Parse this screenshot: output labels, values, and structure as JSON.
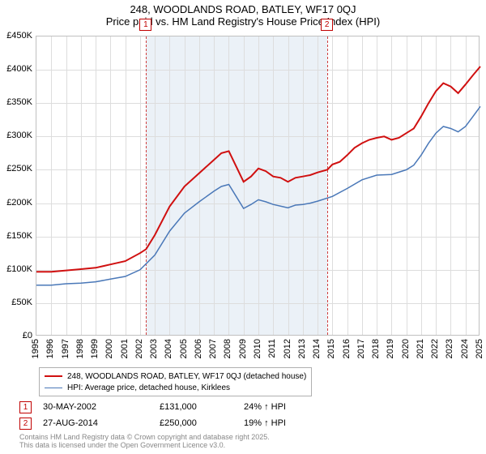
{
  "title": {
    "line1": "248, WOODLANDS ROAD, BATLEY, WF17 0QJ",
    "line2": "Price paid vs. HM Land Registry's House Price Index (HPI)",
    "fontsize": 13
  },
  "chart": {
    "type": "line",
    "background_color": "#ffffff",
    "grid_color": "#dddddd",
    "border_color": "#c0c0c0",
    "x": {
      "min": 1995,
      "max": 2025,
      "ticks": [
        1995,
        1996,
        1997,
        1998,
        1999,
        2000,
        2001,
        2002,
        2003,
        2004,
        2005,
        2006,
        2007,
        2008,
        2009,
        2010,
        2011,
        2012,
        2013,
        2014,
        2015,
        2016,
        2017,
        2018,
        2019,
        2020,
        2021,
        2022,
        2023,
        2024,
        2025
      ],
      "label_fontsize": 11
    },
    "y": {
      "min": 0,
      "max": 450000,
      "tick_step": 50000,
      "tick_labels": [
        "£0",
        "£50K",
        "£100K",
        "£150K",
        "£200K",
        "£250K",
        "£300K",
        "£350K",
        "£400K",
        "£450K"
      ],
      "label_fontsize": 11
    },
    "sale_band": {
      "start_year": 2002.41,
      "end_year": 2014.66,
      "color": "#e8eef6"
    },
    "sale_lines": {
      "color": "#d04040",
      "dash": "4,3"
    },
    "sale_markers": [
      {
        "n": "1",
        "year": 2002.41,
        "chart_y": -22
      },
      {
        "n": "2",
        "year": 2014.66,
        "chart_y": -22
      }
    ],
    "series": [
      {
        "name": "price_paid",
        "label": "248, WOODLANDS ROAD, BATLEY, WF17 0QJ (detached house)",
        "color": "#d01010",
        "line_width": 2,
        "points": [
          [
            1995,
            97000
          ],
          [
            1996,
            97000
          ],
          [
            1997,
            99000
          ],
          [
            1998,
            101000
          ],
          [
            1999,
            103000
          ],
          [
            2000,
            108000
          ],
          [
            2001,
            113000
          ],
          [
            2002,
            125000
          ],
          [
            2002.41,
            131000
          ],
          [
            2003,
            152000
          ],
          [
            2004,
            195000
          ],
          [
            2005,
            225000
          ],
          [
            2006,
            245000
          ],
          [
            2007,
            265000
          ],
          [
            2007.5,
            275000
          ],
          [
            2008,
            278000
          ],
          [
            2008.5,
            255000
          ],
          [
            2009,
            232000
          ],
          [
            2009.5,
            240000
          ],
          [
            2010,
            252000
          ],
          [
            2010.5,
            248000
          ],
          [
            2011,
            240000
          ],
          [
            2011.5,
            238000
          ],
          [
            2012,
            232000
          ],
          [
            2012.5,
            238000
          ],
          [
            2013,
            240000
          ],
          [
            2013.5,
            242000
          ],
          [
            2014,
            246000
          ],
          [
            2014.66,
            250000
          ],
          [
            2015,
            258000
          ],
          [
            2015.5,
            262000
          ],
          [
            2016,
            272000
          ],
          [
            2016.5,
            283000
          ],
          [
            2017,
            290000
          ],
          [
            2017.5,
            295000
          ],
          [
            2018,
            298000
          ],
          [
            2018.5,
            300000
          ],
          [
            2019,
            295000
          ],
          [
            2019.5,
            298000
          ],
          [
            2020,
            305000
          ],
          [
            2020.5,
            312000
          ],
          [
            2021,
            330000
          ],
          [
            2021.5,
            350000
          ],
          [
            2022,
            368000
          ],
          [
            2022.5,
            380000
          ],
          [
            2023,
            375000
          ],
          [
            2023.5,
            365000
          ],
          [
            2024,
            378000
          ],
          [
            2024.5,
            392000
          ],
          [
            2025,
            405000
          ]
        ]
      },
      {
        "name": "hpi",
        "label": "HPI: Average price, detached house, Kirklees",
        "color": "#4a78b8",
        "line_width": 1.5,
        "points": [
          [
            1995,
            77000
          ],
          [
            1996,
            77000
          ],
          [
            1997,
            79000
          ],
          [
            1998,
            80000
          ],
          [
            1999,
            82000
          ],
          [
            2000,
            86000
          ],
          [
            2001,
            90000
          ],
          [
            2002,
            100000
          ],
          [
            2003,
            122000
          ],
          [
            2004,
            158000
          ],
          [
            2005,
            185000
          ],
          [
            2006,
            202000
          ],
          [
            2007,
            218000
          ],
          [
            2007.5,
            225000
          ],
          [
            2008,
            228000
          ],
          [
            2008.5,
            210000
          ],
          [
            2009,
            192000
          ],
          [
            2009.5,
            198000
          ],
          [
            2010,
            205000
          ],
          [
            2010.5,
            202000
          ],
          [
            2011,
            198000
          ],
          [
            2012,
            193000
          ],
          [
            2012.5,
            197000
          ],
          [
            2013,
            198000
          ],
          [
            2013.5,
            200000
          ],
          [
            2014,
            203000
          ],
          [
            2015,
            210000
          ],
          [
            2016,
            222000
          ],
          [
            2017,
            235000
          ],
          [
            2018,
            242000
          ],
          [
            2019,
            243000
          ],
          [
            2020,
            250000
          ],
          [
            2020.5,
            257000
          ],
          [
            2021,
            272000
          ],
          [
            2021.5,
            290000
          ],
          [
            2022,
            305000
          ],
          [
            2022.5,
            315000
          ],
          [
            2023,
            312000
          ],
          [
            2023.5,
            307000
          ],
          [
            2024,
            315000
          ],
          [
            2024.5,
            330000
          ],
          [
            2025,
            345000
          ]
        ]
      }
    ]
  },
  "legend": {
    "border_color": "#b0b0b0",
    "rows": [
      {
        "color": "#d01010",
        "width": 2,
        "label": "248, WOODLANDS ROAD, BATLEY, WF17 0QJ (detached house)"
      },
      {
        "color": "#4a78b8",
        "width": 1.5,
        "label": "HPI: Average price, detached house, Kirklees"
      }
    ]
  },
  "sales_table": {
    "rows": [
      {
        "n": "1",
        "date": "30-MAY-2002",
        "price": "£131,000",
        "hpi": "24% ↑ HPI"
      },
      {
        "n": "2",
        "date": "27-AUG-2014",
        "price": "£250,000",
        "hpi": "19% ↑ HPI"
      }
    ]
  },
  "attribution": {
    "line1": "Contains HM Land Registry data © Crown copyright and database right 2025.",
    "line2": "This data is licensed under the Open Government Licence v3.0.",
    "color": "#888888",
    "fontsize": 9
  }
}
